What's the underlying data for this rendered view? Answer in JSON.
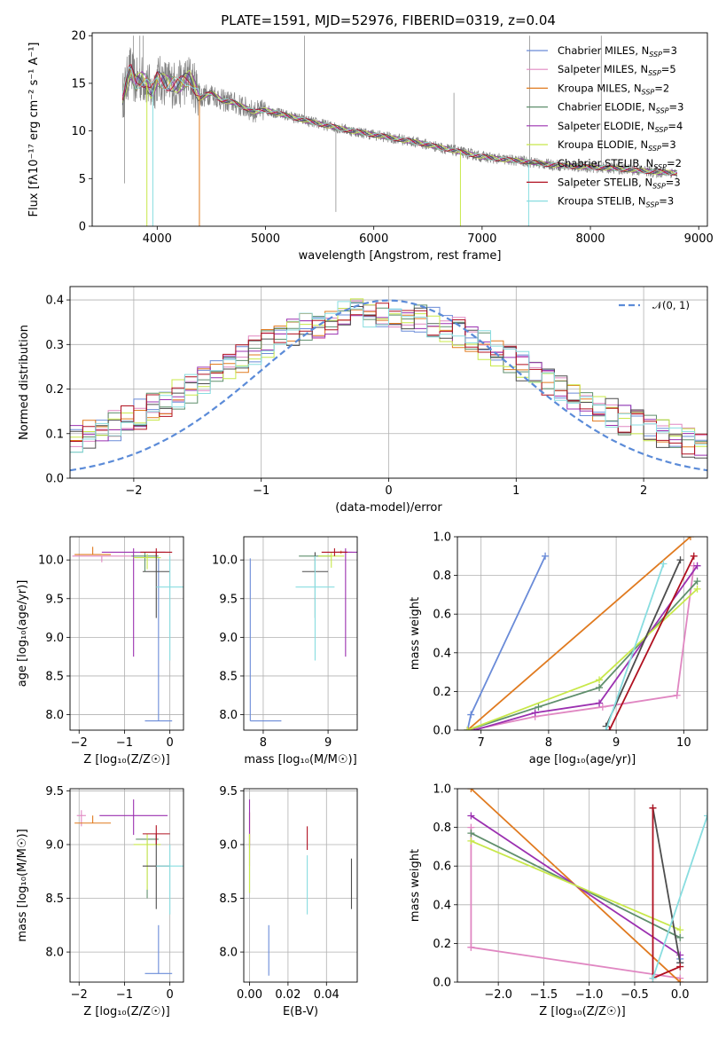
{
  "figure": {
    "title": "PLATE=1591, MJD=52976, FIBERID=0319, z=0.04"
  },
  "models": [
    {
      "name": "Chabrier MILES",
      "nssp": "3",
      "color": "#6a8bd8"
    },
    {
      "name": "Salpeter MILES",
      "nssp": "5",
      "color": "#e087c2"
    },
    {
      "name": "Kroupa MILES",
      "nssp": "2",
      "color": "#e07a1f"
    },
    {
      "name": "Chabrier ELODIE",
      "nssp": "3",
      "color": "#5f8f6c"
    },
    {
      "name": "Salpeter ELODIE",
      "nssp": "4",
      "color": "#9b30b0"
    },
    {
      "name": "Kroupa ELODIE",
      "nssp": "3",
      "color": "#c8e84a"
    },
    {
      "name": "Chabrier STELIB",
      "nssp": "2",
      "color": "#4d4d4d"
    },
    {
      "name": "Salpeter STELIB",
      "nssp": "3",
      "color": "#b01020"
    },
    {
      "name": "Kroupa STELIB",
      "nssp": "3",
      "color": "#88dde0"
    }
  ],
  "chart_data": [
    {
      "id": "spectrum",
      "type": "line",
      "xlabel": "wavelength [Angstrom, rest frame]",
      "ylabel": "Flux [fλ10⁻¹⁷ erg cm⁻² s⁻¹ A⁻¹]",
      "xlim": [
        3400,
        9080
      ],
      "ylim": [
        0,
        20.3
      ],
      "xticks": [
        4000,
        5000,
        6000,
        7000,
        8000,
        9000
      ],
      "yticks": [
        0,
        5,
        10,
        15,
        20
      ],
      "data_color": "#808080",
      "data": {
        "x": [
          3680,
          3750,
          3800,
          3850,
          3900,
          3950,
          4000,
          4100,
          4200,
          4300,
          4400,
          4500,
          4600,
          4700,
          4800,
          4900,
          5000,
          5200,
          5400,
          5600,
          5800,
          6000,
          6200,
          6400,
          6600,
          6800,
          7000,
          7200,
          7400,
          7600,
          7800,
          8000,
          8200,
          8400,
          8600,
          8800
        ],
        "y": [
          13.5,
          16.5,
          15.0,
          15.5,
          15.2,
          14.0,
          15.5,
          15.0,
          14.8,
          15.6,
          13.5,
          14.0,
          13.2,
          13.0,
          12.5,
          12.0,
          12.2,
          11.6,
          11.0,
          10.5,
          10.0,
          9.6,
          9.2,
          8.8,
          8.3,
          7.8,
          7.3,
          7.0,
          6.8,
          6.5,
          6.3,
          6.2,
          6.1,
          5.9,
          5.7,
          5.6
        ]
      },
      "legend_position": "upper right"
    },
    {
      "id": "residuals",
      "type": "line",
      "xlabel": "(data-model)/error",
      "ylabel": "Normed distribution",
      "xlim": [
        -2.5,
        2.5
      ],
      "ylim": [
        0,
        0.43
      ],
      "xticks": [
        -2,
        -1,
        0,
        1,
        2
      ],
      "yticks": [
        0.0,
        0.1,
        0.2,
        0.3,
        0.4
      ],
      "grid": true,
      "gaussian": {
        "label": "𝒩(0, 1)",
        "color": "#5b8bd8",
        "mu": 0,
        "sigma": 1
      },
      "legend_position": "upper right"
    },
    {
      "id": "age-vs-Z",
      "type": "scatter",
      "xlabel": "Z [log₁₀(Z/Z☉)]",
      "ylabel": "age  [log₁₀(age/yr)]",
      "xlim": [
        -2.2,
        0.3
      ],
      "ylim": [
        7.8,
        10.3
      ],
      "xticks": [
        -2,
        -1,
        0
      ],
      "yticks": [
        8.0,
        8.5,
        9.0,
        9.5,
        10.0
      ],
      "grid": true,
      "points": [
        {
          "m": 0,
          "x": -0.25,
          "y": 7.92,
          "xerr": 0.3,
          "yerr_lo": 0,
          "yerr_hi": 2.1
        },
        {
          "m": 1,
          "x": -1.5,
          "y": 10.05,
          "xerr": 0.65,
          "yerr_lo": 0.08,
          "yerr_hi": 0.0
        },
        {
          "m": 2,
          "x": -1.7,
          "y": 10.07,
          "xerr": 0.4,
          "yerr_lo": 0,
          "yerr_hi": 0.1
        },
        {
          "m": 3,
          "x": -0.55,
          "y": 10.05,
          "xerr": 0.3,
          "yerr_lo": 0.2,
          "yerr_hi": 0.05
        },
        {
          "m": 4,
          "x": -0.8,
          "y": 10.1,
          "xerr": 0.7,
          "yerr_lo": 1.35,
          "yerr_hi": 0.05
        },
        {
          "m": 5,
          "x": -0.5,
          "y": 10.03,
          "xerr": 0.3,
          "yerr_lo": 0.15,
          "yerr_hi": 0.05
        },
        {
          "m": 6,
          "x": -0.3,
          "y": 9.85,
          "xerr": 0.3,
          "yerr_lo": 0.6,
          "yerr_hi": 0.25
        },
        {
          "m": 7,
          "x": -0.3,
          "y": 10.1,
          "xerr": 0.35,
          "yerr_lo": 0.05,
          "yerr_hi": 0.05
        },
        {
          "m": 8,
          "x": 0.0,
          "y": 9.65,
          "xerr": 0.3,
          "yerr_lo": 0.95,
          "yerr_hi": 0.4
        }
      ]
    },
    {
      "id": "age-vs-mass",
      "type": "scatter",
      "xlabel": "mass [log₁₀(M/M☉)]",
      "ylabel": "",
      "xlim": [
        7.7,
        9.45
      ],
      "ylim": [
        7.8,
        10.3
      ],
      "xticks": [
        8,
        9
      ],
      "yticks": [
        8.0,
        8.5,
        9.0,
        9.5,
        10.0
      ],
      "grid": true,
      "points": [
        {
          "m": 0,
          "x": 7.8,
          "y": 7.92,
          "xerr_lo": 0,
          "xerr_hi": 0.48,
          "yerr_lo": 0,
          "yerr_hi": 2.1
        },
        {
          "m": 1,
          "x": 9.27,
          "y": 10.1,
          "xerr": 0.1,
          "yerr_lo": 0.02,
          "yerr_hi": 0.02
        },
        {
          "m": 2,
          "x": 9.2,
          "y": 10.1,
          "xerr": 0.05,
          "yerr_lo": 0.02,
          "yerr_hi": 0.02
        },
        {
          "m": 3,
          "x": 8.8,
          "y": 10.05,
          "xerr": 0.25,
          "yerr_lo": 0.2,
          "yerr_hi": 0.05
        },
        {
          "m": 4,
          "x": 9.27,
          "y": 10.1,
          "xerr": 0.18,
          "yerr_lo": 1.35,
          "yerr_hi": 0.05
        },
        {
          "m": 5,
          "x": 9.05,
          "y": 10.05,
          "xerr": 0.2,
          "yerr_lo": 0.15,
          "yerr_hi": 0.05
        },
        {
          "m": 6,
          "x": 8.8,
          "y": 9.85,
          "xerr": 0.2,
          "yerr_lo": 0.6,
          "yerr_hi": 0.25
        },
        {
          "m": 7,
          "x": 9.1,
          "y": 10.1,
          "xerr": 0.2,
          "yerr_lo": 0.05,
          "yerr_hi": 0.05
        },
        {
          "m": 8,
          "x": 8.8,
          "y": 9.65,
          "xerr": 0.3,
          "yerr_lo": 0.95,
          "yerr_hi": 0.4
        }
      ]
    },
    {
      "id": "massweight-vs-age",
      "type": "line",
      "xlabel": "age  [log₁₀(age/yr)]",
      "ylabel": "mass weight",
      "xlim": [
        6.65,
        10.35
      ],
      "ylim": [
        0,
        1.0
      ],
      "xticks": [
        7,
        8,
        9,
        10
      ],
      "yticks": [
        0.0,
        0.2,
        0.4,
        0.6,
        0.8,
        1.0
      ],
      "grid": true,
      "series": [
        {
          "m": 0,
          "x": [
            6.8,
            6.85,
            7.95
          ],
          "y": [
            0.0,
            0.08,
            0.9
          ]
        },
        {
          "m": 1,
          "x": [
            6.85,
            7.8,
            8.8,
            9.9,
            10.15
          ],
          "y": [
            0.0,
            0.07,
            0.12,
            0.18,
            0.85
          ]
        },
        {
          "m": 2,
          "x": [
            6.8,
            10.1
          ],
          "y": [
            0.0,
            1.0
          ]
        },
        {
          "m": 3,
          "x": [
            6.8,
            7.85,
            8.75,
            10.2
          ],
          "y": [
            0.0,
            0.12,
            0.22,
            0.77
          ]
        },
        {
          "m": 4,
          "x": [
            6.9,
            7.8,
            8.75,
            10.2
          ],
          "y": [
            0.0,
            0.09,
            0.14,
            0.85
          ]
        },
        {
          "m": 5,
          "x": [
            6.8,
            8.75,
            10.2
          ],
          "y": [
            0.0,
            0.26,
            0.73
          ]
        },
        {
          "m": 6,
          "x": [
            8.85,
            9.95
          ],
          "y": [
            0.02,
            0.88
          ]
        },
        {
          "m": 7,
          "x": [
            8.9,
            10.15
          ],
          "y": [
            0.0,
            0.9
          ]
        },
        {
          "m": 8,
          "x": [
            8.85,
            9.7
          ],
          "y": [
            0.0,
            0.86
          ]
        }
      ]
    },
    {
      "id": "mass-vs-Z",
      "type": "scatter",
      "xlabel": "Z [log₁₀(Z/Z☉)]",
      "ylabel": "mass [log₁₀(M/M☉)]",
      "xlim": [
        -2.2,
        0.3
      ],
      "ylim": [
        7.72,
        9.52
      ],
      "xticks": [
        -2,
        -1,
        0
      ],
      "yticks": [
        8.0,
        8.5,
        9.0,
        9.5
      ],
      "grid": true,
      "points": [
        {
          "m": 0,
          "x": -0.25,
          "y": 7.8,
          "xerr": 0.3,
          "yerr_lo": 0,
          "yerr_hi": 0.45
        },
        {
          "m": 1,
          "x": -1.95,
          "y": 9.27,
          "xerr": 0.1,
          "yerr_lo": 0.1,
          "yerr_hi": 0.05
        },
        {
          "m": 2,
          "x": -1.7,
          "y": 9.2,
          "xerr": 0.4,
          "yerr_lo": 0,
          "yerr_hi": 0.07
        },
        {
          "m": 3,
          "x": -0.5,
          "y": 9.05,
          "xerr": 0.25,
          "yerr_lo": 0.55,
          "yerr_hi": 0.0
        },
        {
          "m": 4,
          "x": -0.8,
          "y": 9.27,
          "xerr": 0.75,
          "yerr_lo": 0.18,
          "yerr_hi": 0.15
        },
        {
          "m": 5,
          "x": -0.5,
          "y": 9.0,
          "xerr": 0.3,
          "yerr_lo": 0.42,
          "yerr_hi": 0.1
        },
        {
          "m": 6,
          "x": -0.3,
          "y": 8.8,
          "xerr": 0.3,
          "yerr_lo": 0.4,
          "yerr_hi": 0.3
        },
        {
          "m": 7,
          "x": -0.3,
          "y": 9.1,
          "xerr": 0.3,
          "yerr_lo": 0.1,
          "yerr_hi": 0.08
        },
        {
          "m": 8,
          "x": 0.0,
          "y": 8.8,
          "xerr": 0.3,
          "yerr_lo": 0.45,
          "yerr_hi": 0.2
        }
      ]
    },
    {
      "id": "mass-vs-EBV",
      "type": "scatter",
      "xlabel": "E(B-V)",
      "ylabel": "",
      "xlim": [
        -0.003,
        0.056
      ],
      "ylim": [
        7.72,
        9.52
      ],
      "xticks": [
        0.0,
        0.02,
        0.04
      ],
      "xtick_labels": [
        "0.00",
        "0.02",
        "0.04"
      ],
      "yticks": [
        8.0,
        8.5,
        9.0,
        9.5
      ],
      "grid": true,
      "points": [
        {
          "m": 0,
          "x": 0.01,
          "y": 8.0,
          "yerr_lo": 0.22,
          "yerr_hi": 0.25
        },
        {
          "m": 1,
          "x": 0.0,
          "y": 9.1,
          "yerr_lo": 0.3,
          "yerr_hi": 0.2
        },
        {
          "m": 2,
          "x": 0.0,
          "y": 9.2,
          "yerr_lo": 0.2,
          "yerr_hi": 0.1
        },
        {
          "m": 3,
          "x": 0.0,
          "y": 9.05,
          "yerr_lo": 0.5,
          "yerr_hi": 0.05
        },
        {
          "m": 4,
          "x": 0.0,
          "y": 9.27,
          "yerr_lo": 0.3,
          "yerr_hi": 0.15
        },
        {
          "m": 5,
          "x": 0.0,
          "y": 8.85,
          "yerr_lo": 0.3,
          "yerr_hi": 0.25
        },
        {
          "m": 6,
          "x": 0.053,
          "y": 8.65,
          "yerr_lo": 0.25,
          "yerr_hi": 0.22
        },
        {
          "m": 7,
          "x": 0.03,
          "y": 9.05,
          "yerr_lo": 0.1,
          "yerr_hi": 0.12
        },
        {
          "m": 8,
          "x": 0.03,
          "y": 8.7,
          "yerr_lo": 0.35,
          "yerr_hi": 0.2
        }
      ]
    },
    {
      "id": "massweight-vs-Z",
      "type": "line",
      "xlabel": "Z [log₁₀(Z/Z☉)]",
      "ylabel": "mass weight",
      "xlim": [
        -2.45,
        0.3
      ],
      "ylim": [
        0,
        1.0
      ],
      "xticks": [
        -2.0,
        -1.5,
        -1.0,
        -0.5,
        0.0
      ],
      "yticks": [
        0.0,
        0.2,
        0.4,
        0.6,
        0.8,
        1.0
      ],
      "grid": true,
      "series": [
        {
          "m": 0,
          "x": [
            0.0,
            0.0
          ],
          "y": [
            0.1,
            0.12
          ]
        },
        {
          "m": 1,
          "x": [
            -2.3,
            -2.3,
            -2.3,
            0.0,
            0.0
          ],
          "y": [
            0.8,
            0.18,
            0.18,
            0.02,
            0.0
          ]
        },
        {
          "m": 2,
          "x": [
            -2.3,
            0.0
          ],
          "y": [
            1.0,
            0.0
          ]
        },
        {
          "m": 3,
          "x": [
            -2.3,
            0.0
          ],
          "y": [
            0.77,
            0.23
          ]
        },
        {
          "m": 4,
          "x": [
            -2.3,
            0.0
          ],
          "y": [
            0.86,
            0.14
          ]
        },
        {
          "m": 5,
          "x": [
            -2.3,
            0.0
          ],
          "y": [
            0.73,
            0.27
          ]
        },
        {
          "m": 6,
          "x": [
            -0.3,
            0.0
          ],
          "y": [
            0.9,
            0.1
          ]
        },
        {
          "m": 7,
          "x": [
            -0.3,
            -0.3,
            0.0
          ],
          "y": [
            0.9,
            0.02,
            0.08
          ]
        },
        {
          "m": 8,
          "x": [
            -0.3,
            0.3
          ],
          "y": [
            0.02,
            0.86
          ]
        }
      ]
    }
  ]
}
